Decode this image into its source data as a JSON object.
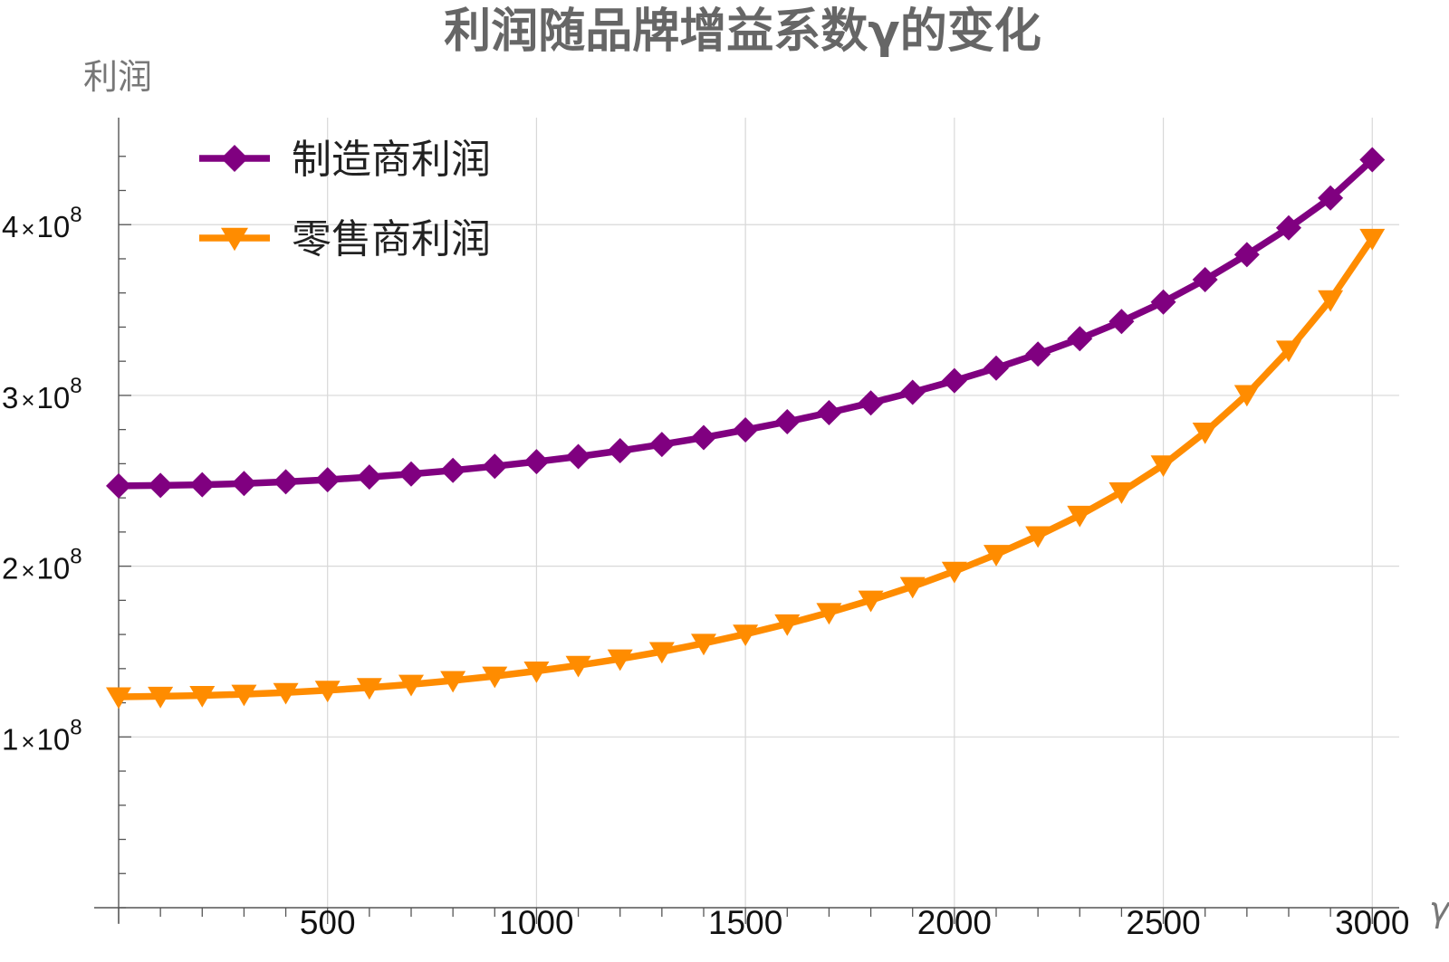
{
  "chart_data": {
    "type": "line",
    "title": "利润随品牌增益系数γ的变化",
    "xlabel": "γ",
    "ylabel": "利润",
    "xlim": [
      0,
      3060
    ],
    "ylim": [
      0,
      460000000
    ],
    "x_ticks": [
      500,
      1000,
      1500,
      2000,
      2500,
      3000
    ],
    "x_tick_labels": [
      "500",
      "1000",
      "1500",
      "2000",
      "2500",
      "3000"
    ],
    "y_ticks": [
      100000000,
      200000000,
      300000000,
      400000000
    ],
    "y_tick_labels": [
      {
        "mantissa": "1",
        "times": "×",
        "base": "10",
        "exponent": "8"
      },
      {
        "mantissa": "2",
        "times": "×",
        "base": "10",
        "exponent": "8"
      },
      {
        "mantissa": "3",
        "times": "×",
        "base": "10",
        "exponent": "8"
      },
      {
        "mantissa": "4",
        "times": "×",
        "base": "10",
        "exponent": "8"
      }
    ],
    "grid": true,
    "legend_position": "top-left",
    "x": [
      0,
      100,
      200,
      300,
      400,
      500,
      600,
      700,
      800,
      900,
      1000,
      1100,
      1200,
      1300,
      1400,
      1500,
      1600,
      1700,
      1800,
      1900,
      2000,
      2100,
      2200,
      2300,
      2400,
      2500,
      2600,
      2700,
      2800,
      2900,
      3000
    ],
    "series": [
      {
        "name": "制造商利润",
        "color": "#800080",
        "marker": "diamond",
        "values": [
          247000000,
          247300000,
          247700000,
          248400000,
          249400000,
          250600000,
          252200000,
          254000000,
          256100000,
          258500000,
          261200000,
          264200000,
          267600000,
          271300000,
          275300000,
          279800000,
          284600000,
          289900000,
          295600000,
          301800000,
          308600000,
          316000000,
          324200000,
          333200000,
          343300000,
          354700000,
          367800000,
          382400000,
          398100000,
          415600000,
          438000000
        ]
      },
      {
        "name": "零售商利润",
        "color": "#ff8c00",
        "marker": "triangle-down",
        "values": [
          123500000,
          123800000,
          124300000,
          125000000,
          126000000,
          127300000,
          128900000,
          130800000,
          133000000,
          135600000,
          138600000,
          141900000,
          145700000,
          150000000,
          154800000,
          160200000,
          166200000,
          172800000,
          180100000,
          188100000,
          197000000,
          206900000,
          217800000,
          229800000,
          243500000,
          259300000,
          278500000,
          300500000,
          326500000,
          356000000,
          392000000
        ]
      }
    ]
  }
}
